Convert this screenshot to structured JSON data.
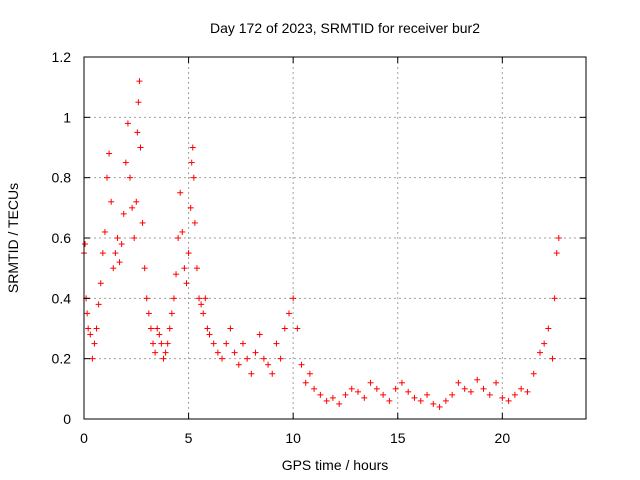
{
  "chart_data": {
    "type": "scatter",
    "title": "Day 172 of 2023, SRMTID for receiver bur2",
    "xlabel": "GPS time / hours",
    "ylabel": "SRMTID / TECUs",
    "xlim": [
      0,
      24
    ],
    "ylim": [
      0,
      1.2
    ],
    "x_ticks": [
      0,
      5,
      10,
      15,
      20
    ],
    "x_tick_labels": [
      "0",
      "5",
      "10",
      "15",
      "20"
    ],
    "y_ticks": [
      0,
      0.2,
      0.4,
      0.6,
      0.8,
      1.0,
      1.2
    ],
    "y_tick_labels": [
      "0",
      "0.2",
      "0.4",
      "0.6",
      "0.8",
      "1",
      "1.2"
    ],
    "grid": true,
    "marker": "+",
    "marker_color": "#ff0000",
    "series": [
      {
        "name": "SRMTID",
        "x": [
          0.0,
          0.05,
          0.1,
          0.15,
          0.2,
          0.3,
          0.4,
          0.5,
          0.6,
          0.7,
          0.8,
          0.9,
          1.0,
          1.1,
          1.2,
          1.3,
          1.4,
          1.5,
          1.6,
          1.7,
          1.8,
          1.9,
          2.0,
          2.1,
          2.2,
          2.3,
          2.4,
          2.5,
          2.55,
          2.6,
          2.65,
          2.7,
          2.8,
          2.9,
          3.0,
          3.1,
          3.2,
          3.3,
          3.4,
          3.5,
          3.6,
          3.7,
          3.8,
          3.9,
          4.0,
          4.1,
          4.2,
          4.3,
          4.4,
          4.5,
          4.6,
          4.7,
          4.8,
          4.9,
          5.0,
          5.1,
          5.15,
          5.2,
          5.25,
          5.3,
          5.4,
          5.5,
          5.6,
          5.7,
          5.8,
          5.9,
          6.0,
          6.2,
          6.4,
          6.6,
          6.8,
          7.0,
          7.2,
          7.4,
          7.6,
          7.8,
          8.0,
          8.2,
          8.4,
          8.6,
          8.8,
          9.0,
          9.2,
          9.4,
          9.6,
          9.8,
          10.0,
          10.2,
          10.4,
          10.6,
          10.8,
          11.0,
          11.3,
          11.6,
          11.9,
          12.2,
          12.5,
          12.8,
          13.1,
          13.4,
          13.7,
          14.0,
          14.3,
          14.6,
          14.9,
          15.2,
          15.5,
          15.8,
          16.1,
          16.4,
          16.7,
          17.0,
          17.3,
          17.6,
          17.9,
          18.2,
          18.5,
          18.8,
          19.1,
          19.4,
          19.7,
          20.0,
          20.3,
          20.6,
          20.9,
          21.2,
          21.5,
          21.8,
          22.0,
          22.2,
          22.4,
          22.5,
          22.6,
          22.7
        ],
        "y": [
          0.55,
          0.58,
          0.4,
          0.35,
          0.3,
          0.28,
          0.2,
          0.25,
          0.3,
          0.38,
          0.45,
          0.55,
          0.62,
          0.8,
          0.88,
          0.72,
          0.5,
          0.55,
          0.6,
          0.52,
          0.58,
          0.68,
          0.85,
          0.98,
          0.8,
          0.7,
          0.6,
          0.72,
          0.95,
          1.05,
          1.12,
          0.9,
          0.65,
          0.5,
          0.4,
          0.35,
          0.3,
          0.25,
          0.22,
          0.3,
          0.28,
          0.25,
          0.2,
          0.22,
          0.25,
          0.3,
          0.35,
          0.4,
          0.48,
          0.6,
          0.75,
          0.62,
          0.5,
          0.45,
          0.55,
          0.7,
          0.85,
          0.9,
          0.8,
          0.65,
          0.5,
          0.4,
          0.38,
          0.35,
          0.4,
          0.3,
          0.28,
          0.25,
          0.22,
          0.2,
          0.25,
          0.3,
          0.22,
          0.18,
          0.25,
          0.2,
          0.15,
          0.22,
          0.28,
          0.2,
          0.18,
          0.15,
          0.25,
          0.2,
          0.3,
          0.35,
          0.4,
          0.3,
          0.18,
          0.12,
          0.15,
          0.1,
          0.08,
          0.06,
          0.07,
          0.05,
          0.08,
          0.1,
          0.09,
          0.07,
          0.12,
          0.1,
          0.08,
          0.06,
          0.1,
          0.12,
          0.09,
          0.07,
          0.06,
          0.08,
          0.05,
          0.04,
          0.06,
          0.08,
          0.12,
          0.1,
          0.09,
          0.13,
          0.1,
          0.08,
          0.12,
          0.07,
          0.06,
          0.08,
          0.1,
          0.09,
          0.15,
          0.22,
          0.25,
          0.3,
          0.2,
          0.4,
          0.55,
          0.6
        ]
      }
    ]
  }
}
